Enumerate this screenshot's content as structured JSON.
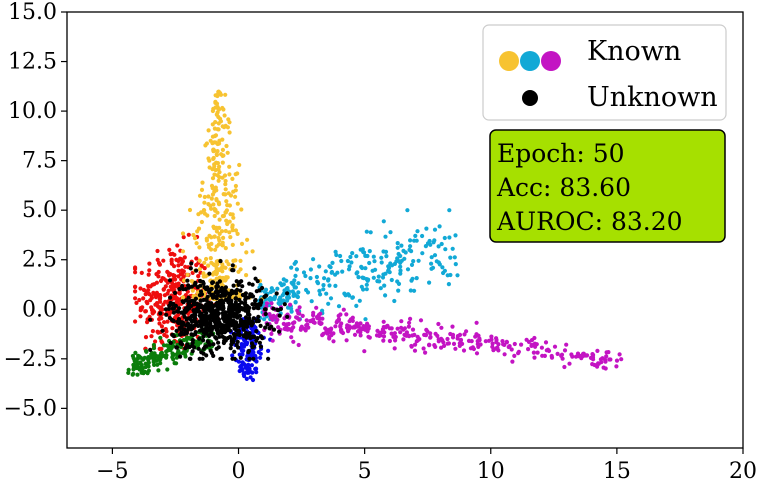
{
  "chart_data": {
    "type": "scatter",
    "title": "",
    "xlabel": "",
    "ylabel": "",
    "xlim": [
      -6.8,
      20
    ],
    "ylim": [
      -7.0,
      15.0
    ],
    "xticks": [
      -5,
      0,
      5,
      10,
      15,
      20
    ],
    "xtick_labels": [
      "−5",
      "0",
      "5",
      "10",
      "15",
      "20"
    ],
    "yticks": [
      -5.0,
      -2.5,
      0.0,
      2.5,
      5.0,
      7.5,
      10.0,
      12.5,
      15.0
    ],
    "ytick_labels": [
      "−5.0",
      "−2.5",
      "0.0",
      "2.5",
      "5.0",
      "7.5",
      "10.0",
      "12.5",
      "15.0"
    ],
    "grid": false,
    "legend": {
      "placement": "top-right",
      "entries": [
        {
          "label": "Known",
          "colors": [
            "#f7c331",
            "#12a9d6",
            "#c314c3"
          ]
        },
        {
          "label": "Unknown",
          "colors": [
            "#000000"
          ]
        }
      ]
    },
    "info_box": {
      "lines": [
        "Epoch: 50",
        "Acc: 83.60",
        "AUROC: 83.20"
      ],
      "background": "#a6e000"
    },
    "clusters": [
      {
        "class": "known",
        "color": "#f7c331",
        "center": [
          -1.0,
          5.5
        ],
        "x_range": [
          -2.2,
          1.0
        ],
        "y_range": [
          0.5,
          11.0
        ],
        "approx_count": 350
      },
      {
        "class": "known",
        "color": "#12a9d6",
        "center": [
          3.5,
          1.5
        ],
        "x_range": [
          0.8,
          8.7
        ],
        "y_range": [
          -0.5,
          5.0
        ],
        "approx_count": 280
      },
      {
        "class": "known",
        "color": "#c314c3",
        "center": [
          6.5,
          -1.3
        ],
        "x_range": [
          1.0,
          15.2
        ],
        "y_range": [
          -3.6,
          0.3
        ],
        "approx_count": 380
      },
      {
        "class": "known",
        "color": "#ee0e0e",
        "center": [
          -2.6,
          0.5
        ],
        "x_range": [
          -4.1,
          -0.8
        ],
        "y_range": [
          -2.0,
          4.6
        ],
        "approx_count": 330
      },
      {
        "class": "known",
        "color": "#0b7d0b",
        "center": [
          -3.2,
          -2.2
        ],
        "x_range": [
          -4.4,
          -1.0
        ],
        "y_range": [
          -3.3,
          -1.0
        ],
        "approx_count": 190
      },
      {
        "class": "known",
        "color": "#0a0aee",
        "center": [
          0.4,
          -1.8
        ],
        "x_range": [
          -0.3,
          1.5
        ],
        "y_range": [
          -3.7,
          -0.5
        ],
        "approx_count": 140
      },
      {
        "class": "unknown",
        "color": "#000000",
        "center": [
          -0.8,
          -0.3
        ],
        "x_range": [
          -3.5,
          2.0
        ],
        "y_range": [
          -2.5,
          3.0
        ],
        "approx_count": 700
      }
    ]
  }
}
